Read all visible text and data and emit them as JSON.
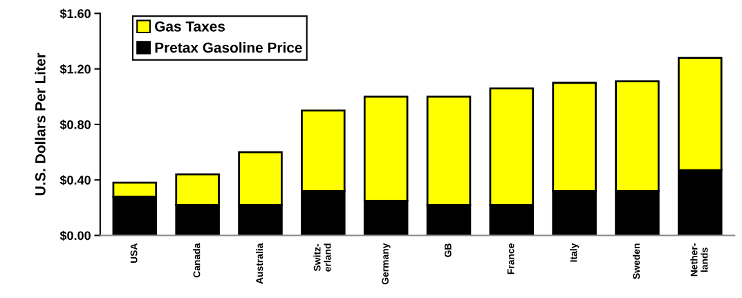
{
  "chart_data": {
    "type": "bar",
    "stacked": true,
    "ylabel": "U.S. Dollars Per Liter",
    "categories": [
      "USA",
      "Canada",
      "Australia",
      "Switz-\nerland",
      "Germany",
      "GB",
      "France",
      "Italy",
      "Sweden",
      "Nether-\nlands"
    ],
    "series": [
      {
        "name": "Pretax Gasoline Price",
        "color": "#000000",
        "values": [
          0.28,
          0.22,
          0.22,
          0.32,
          0.25,
          0.22,
          0.22,
          0.32,
          0.32,
          0.47
        ]
      },
      {
        "name": "Gas Taxes",
        "color": "#ffff00",
        "values": [
          0.1,
          0.22,
          0.38,
          0.58,
          0.75,
          0.78,
          0.84,
          0.78,
          0.79,
          0.81
        ]
      }
    ],
    "ylim": [
      0,
      1.6
    ],
    "yticks": [
      {
        "value": 0,
        "label": "$0.00"
      },
      {
        "value": 0.4,
        "label": "$0.40"
      },
      {
        "value": 0.8,
        "label": "$0.80"
      },
      {
        "value": 1.2,
        "label": "$1.20"
      },
      {
        "value": 1.6,
        "label": "$1.60"
      }
    ],
    "grid": false,
    "legend": "top left"
  }
}
